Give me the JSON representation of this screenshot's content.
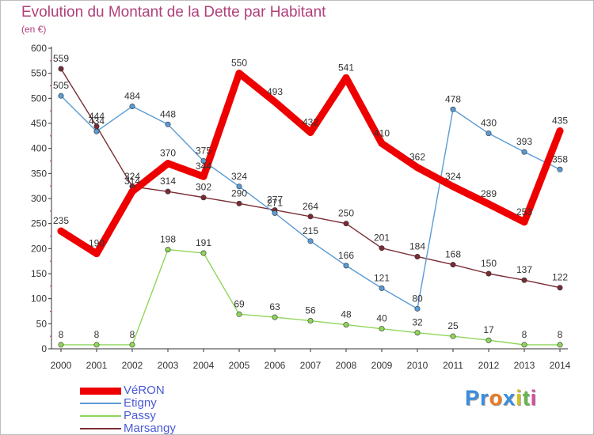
{
  "chart_data": {
    "type": "line",
    "title": "Evolution du Montant de la Dette par Habitant",
    "subtitle": "(en €)",
    "x": [
      "2000",
      "2001",
      "2002",
      "2003",
      "2004",
      "2005",
      "2006",
      "2007",
      "2008",
      "2009",
      "2010",
      "2011",
      "2012",
      "2013",
      "2014"
    ],
    "ylim": [
      0,
      600
    ],
    "yticks": [
      0,
      50,
      100,
      150,
      200,
      250,
      300,
      350,
      400,
      450,
      500,
      550,
      600
    ],
    "grid": false,
    "legend_position": "bottom-left",
    "series": [
      {
        "name": "VéRON",
        "color": "#ee0000",
        "values": [
          235,
          190,
          314,
          370,
          344,
          550,
          493,
          432,
          541,
          410,
          362,
          324,
          289,
          253,
          435
        ],
        "labels": [
          "235",
          "190",
          "314",
          "370",
          "344",
          "550",
          "493",
          "432",
          "541",
          "410",
          "362",
          "324",
          "289",
          "253",
          "435"
        ]
      },
      {
        "name": "Etigny",
        "color": "#5b9bd5",
        "values": [
          505,
          434,
          484,
          448,
          375,
          324,
          271,
          215,
          166,
          121,
          80,
          478,
          430,
          393,
          358
        ],
        "labels": [
          "505",
          "434",
          "484",
          "448",
          "375",
          "324",
          "271",
          "215",
          "166",
          "121",
          "80",
          "478",
          "430",
          "393",
          "358"
        ]
      },
      {
        "name": "Passy",
        "color": "#8fd65a",
        "values": [
          8,
          8,
          8,
          198,
          191,
          69,
          63,
          56,
          48,
          40,
          32,
          25,
          17,
          8,
          8
        ],
        "labels": [
          "8",
          "8",
          "8",
          "198",
          "191",
          "69",
          "63",
          "56",
          "48",
          "40",
          "32",
          "25",
          "17",
          "8",
          "8"
        ]
      },
      {
        "name": "Marsangy",
        "color": "#7a2b34",
        "values": [
          559,
          444,
          324,
          314,
          302,
          290,
          277,
          264,
          250,
          201,
          184,
          168,
          150,
          137,
          122
        ],
        "labels": [
          "559",
          "444",
          "324",
          "314",
          "302",
          "290",
          "277",
          "264",
          "250",
          "201",
          "184",
          "168",
          "150",
          "137",
          "122"
        ]
      }
    ]
  },
  "logo": {
    "letters": [
      "P",
      "r",
      "o",
      "x",
      "i",
      "t",
      "i"
    ],
    "colors": [
      "#3a8ee0",
      "#3a8ee0",
      "#ee7a1f",
      "#3a8ee0",
      "#d8c21a",
      "#64b84a",
      "#d84aa0"
    ]
  }
}
